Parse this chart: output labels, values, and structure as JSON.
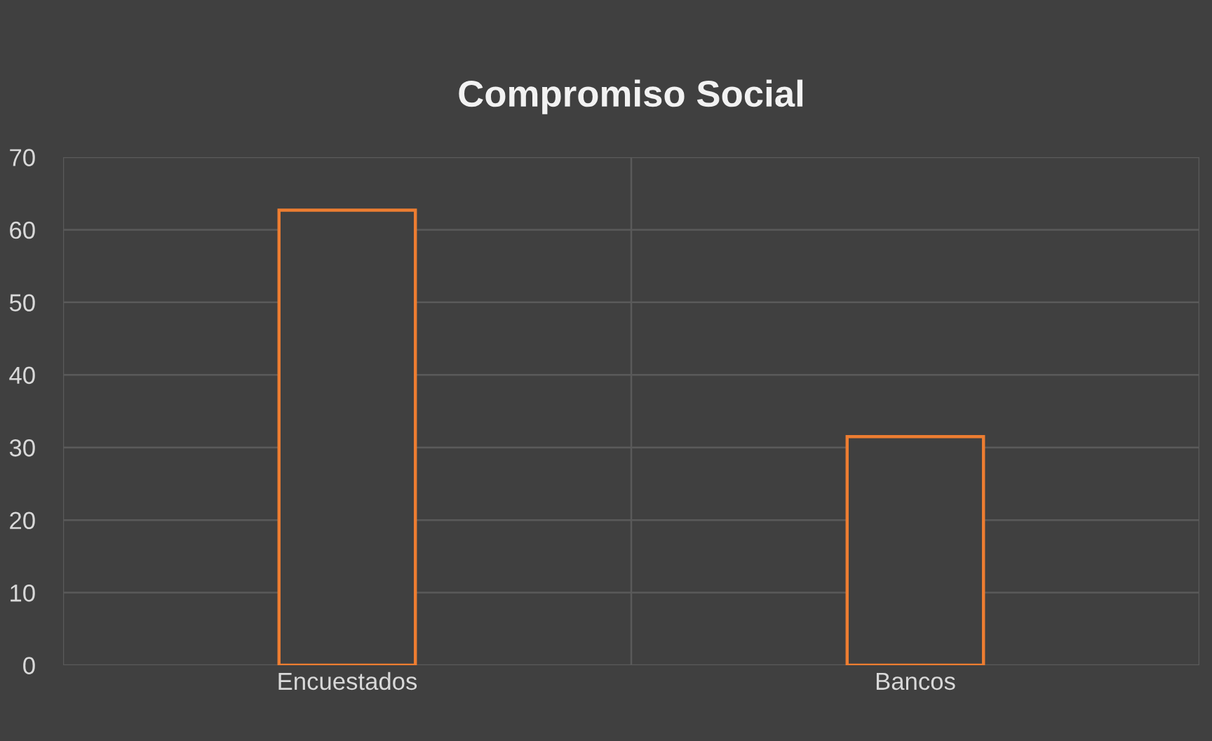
{
  "chart_data": {
    "type": "bar",
    "title": "Compromiso Social",
    "categories": [
      "Encuestados",
      "Bancos"
    ],
    "values": [
      62.7,
      31.5
    ],
    "color": "#ed7d31",
    "ylim": [
      0,
      70
    ],
    "yticks": [
      0,
      10,
      20,
      30,
      40,
      50,
      60,
      70
    ],
    "grid": true
  }
}
